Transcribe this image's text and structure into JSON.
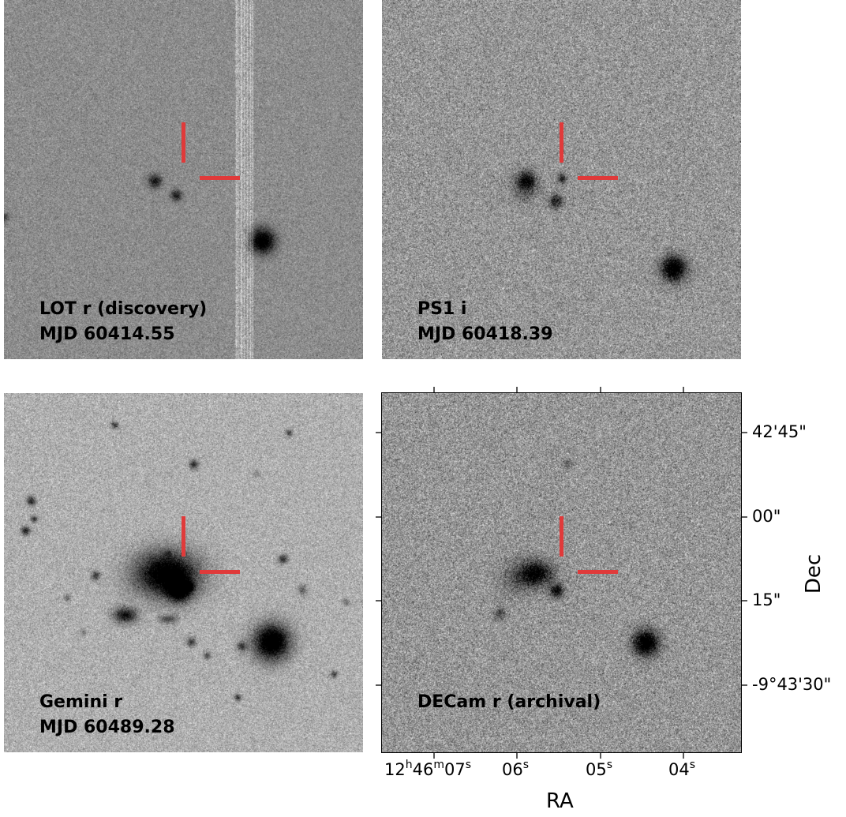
{
  "panels": [
    {
      "id": "p-lot",
      "line1": "LOT r (discovery)",
      "line2": "MJD 60414.55"
    },
    {
      "id": "p-ps1",
      "line1": "PS1 i",
      "line2": "MJD 60418.39"
    },
    {
      "id": "p-gem",
      "line1": "Gemini r",
      "line2": "MJD 60489.28"
    },
    {
      "id": "p-dec",
      "line1": "DECam r (archival)",
      "line2": ""
    }
  ],
  "axes": {
    "ra_label": "RA",
    "dec_label": "Dec",
    "ra_ticks": [
      {
        "h": "12",
        "hu": "h",
        "m": "46",
        "mu": "m",
        "s": "07",
        "su": "s"
      },
      {
        "s": "06",
        "su": "s"
      },
      {
        "s": "05",
        "su": "s"
      },
      {
        "s": "04",
        "su": "s"
      }
    ],
    "dec_ticks": [
      "42'45\"",
      "00\"",
      "15\"",
      "-9°43'30\""
    ]
  },
  "colors": {
    "marker": "#e03a3a",
    "axis": "#000000"
  }
}
